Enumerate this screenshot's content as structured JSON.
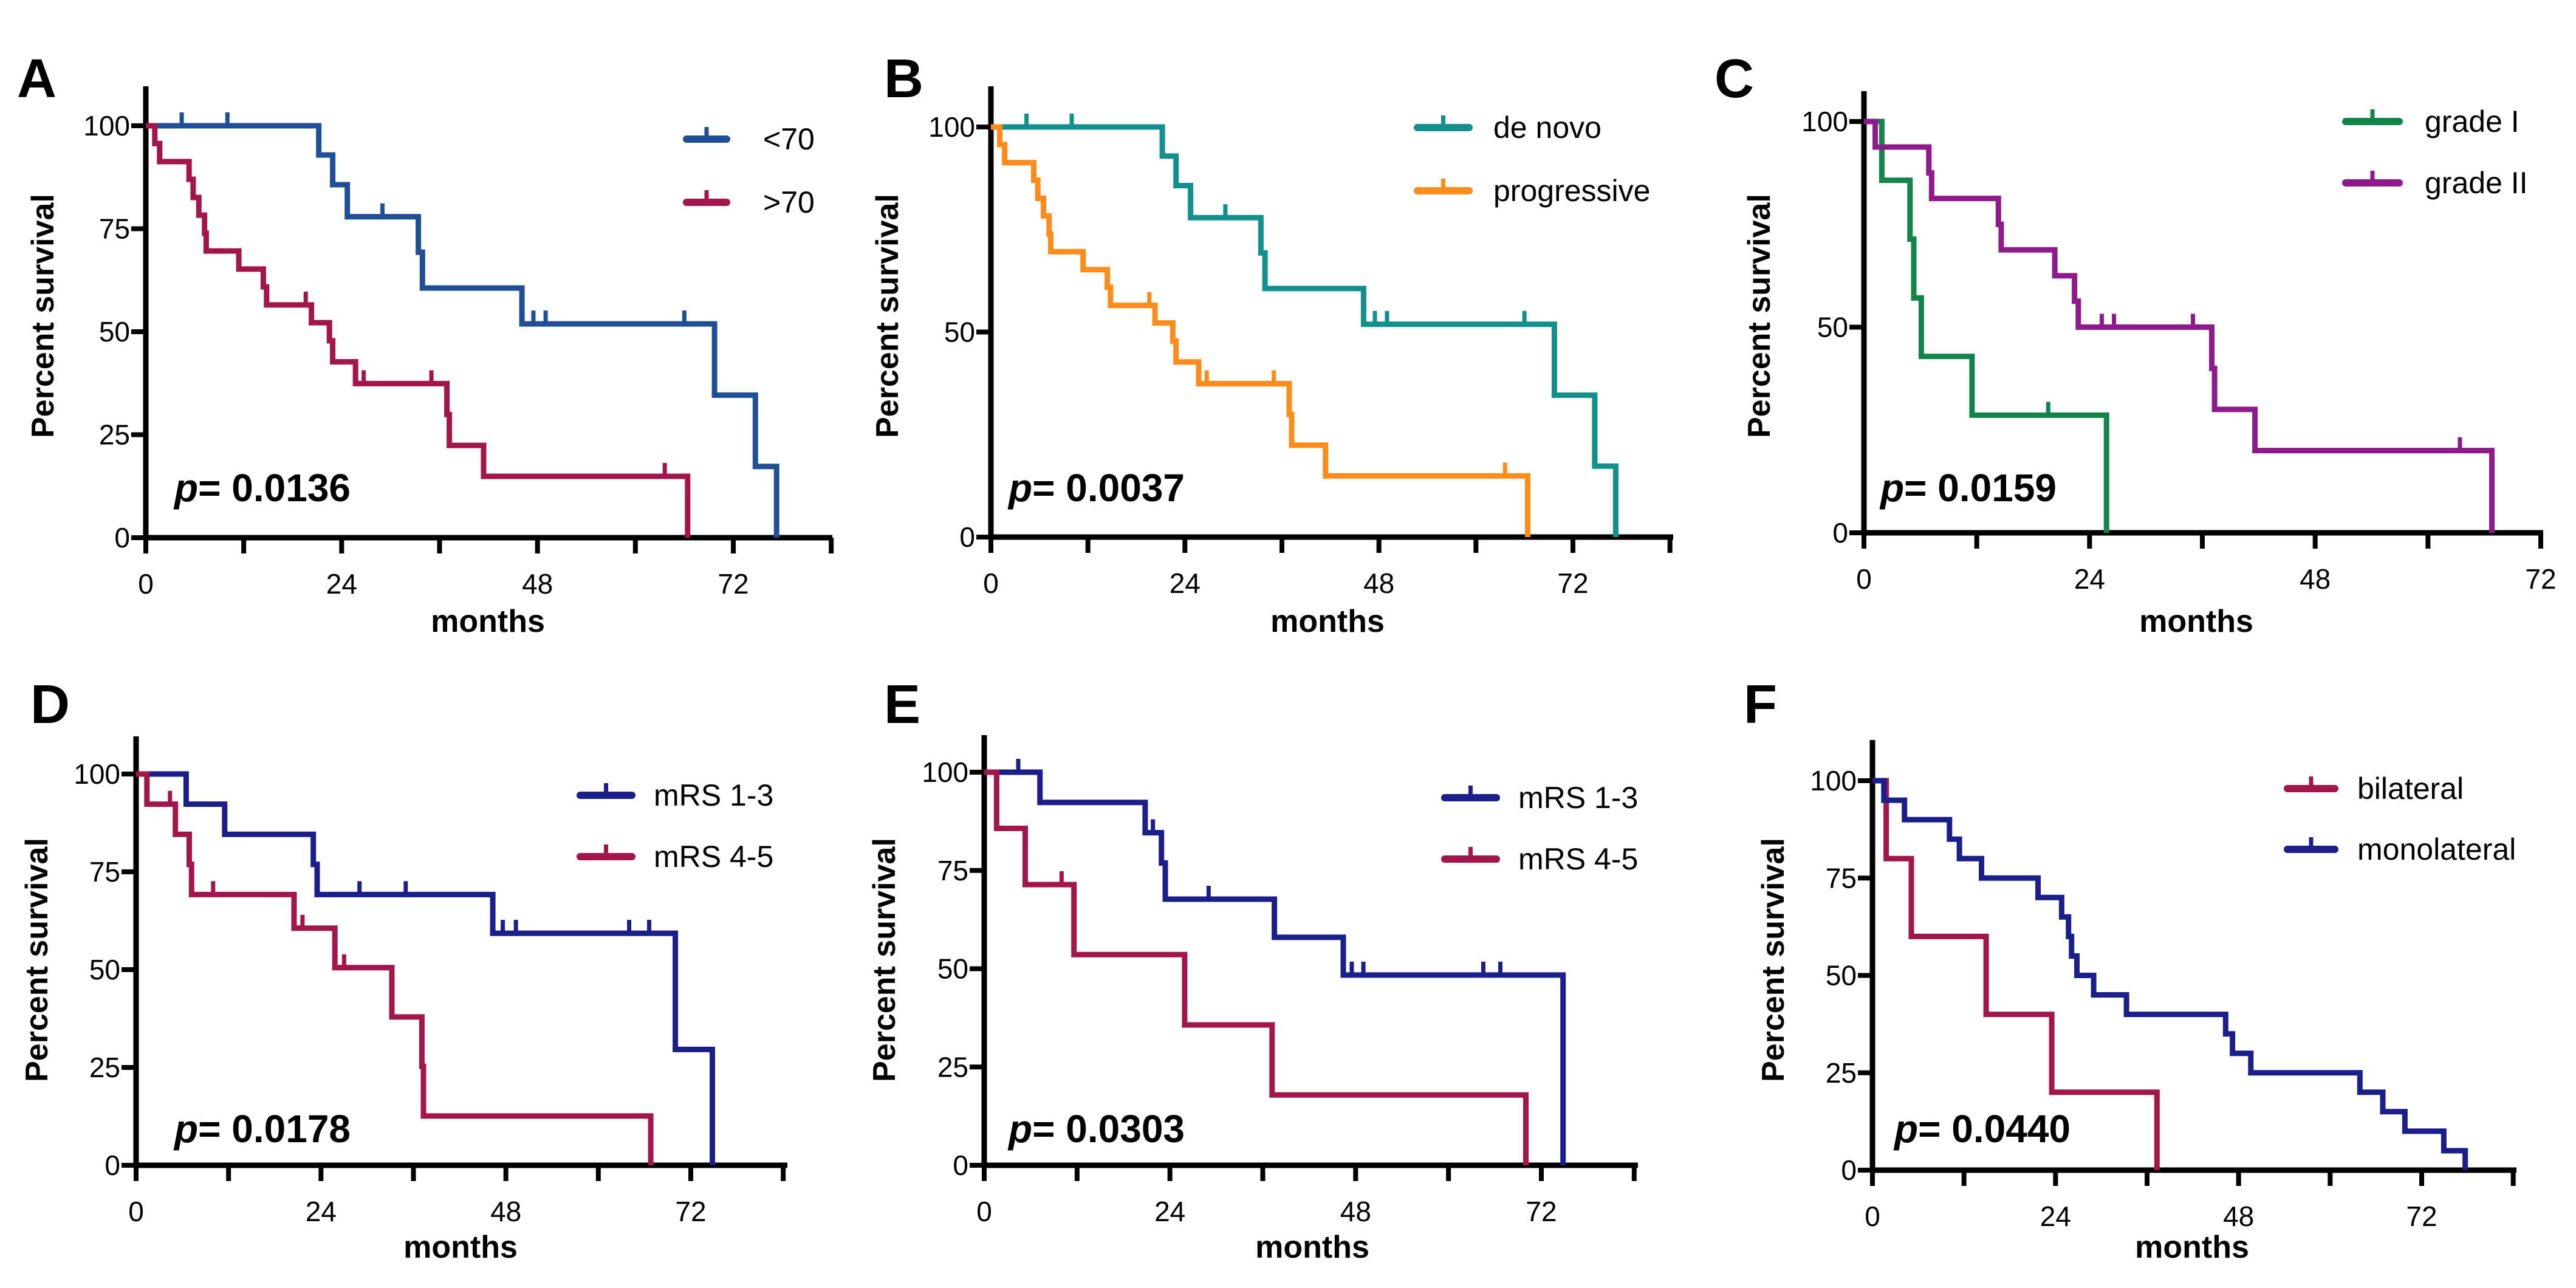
{
  "colors": {
    "axis": "#000000"
  },
  "chart_data": [
    {
      "panel": "A",
      "type": "line",
      "subtype": "kaplan-meier",
      "xlabel": "months",
      "ylabel": "Percent survival",
      "xlim": [
        0,
        84
      ],
      "ylim": [
        0,
        100
      ],
      "x_minor_step": 12,
      "x_ticks": [
        "0",
        "24",
        "48",
        "72"
      ],
      "x_tick_values": [
        0,
        24,
        48,
        72
      ],
      "y_ticks": [
        "0",
        "25",
        "50",
        "75",
        "100"
      ],
      "y_tick_values": [
        0,
        25,
        50,
        75,
        100
      ],
      "p_prefix": "p",
      "p_text": "= 0.0136",
      "legend_position": "top-right",
      "series": [
        {
          "name": "<70",
          "color": "#1f4f96",
          "steps": [
            [
              0,
              100
            ],
            [
              21.2,
              92.9
            ],
            [
              22.9,
              85.7
            ],
            [
              24.7,
              77.9
            ],
            [
              33.4,
              69.3
            ],
            [
              33.9,
              60.6
            ],
            [
              46.1,
              51.9
            ],
            [
              69.7,
              34.6
            ],
            [
              74.7,
              17.3
            ],
            [
              77.3,
              0
            ]
          ],
          "censored": [
            4.4,
            10,
            29,
            47.5,
            49,
            66
          ]
        },
        {
          "name": ">70",
          "color": "#a3164b",
          "steps": [
            [
              0,
              100
            ],
            [
              1.1,
              95.7
            ],
            [
              1.7,
              91.3
            ],
            [
              5.3,
              87
            ],
            [
              5.8,
              82.6
            ],
            [
              6.5,
              78.3
            ],
            [
              7.2,
              73.9
            ],
            [
              7.4,
              69.6
            ],
            [
              11.4,
              65.2
            ],
            [
              14.4,
              60.9
            ],
            [
              14.8,
              56.5
            ],
            [
              20.3,
              52.2
            ],
            [
              22.5,
              47.8
            ],
            [
              22.9,
              42.7
            ],
            [
              25.7,
              37.4
            ],
            [
              36.9,
              29.9
            ],
            [
              37.2,
              22.4
            ],
            [
              41.4,
              14.9
            ],
            [
              66.4,
              0
            ]
          ],
          "censored": [
            19.6,
            26.7,
            35,
            63.6
          ]
        }
      ]
    },
    {
      "panel": "B",
      "type": "line",
      "subtype": "kaplan-meier",
      "xlabel": "months",
      "ylabel": "Percent survival",
      "xlim": [
        0,
        84
      ],
      "ylim": [
        0,
        100
      ],
      "x_minor_step": 12,
      "x_ticks": [
        "0",
        "24",
        "48",
        "72"
      ],
      "x_tick_values": [
        0,
        24,
        48,
        72
      ],
      "y_ticks": [
        "0",
        "50",
        "100"
      ],
      "y_tick_values": [
        0,
        50,
        100
      ],
      "p_prefix": "p",
      "p_text": "= 0.0037",
      "legend_position": "top-right",
      "series": [
        {
          "name": "de novo",
          "color": "#12908e",
          "steps": [
            [
              0,
              100
            ],
            [
              21.2,
              92.9
            ],
            [
              22.9,
              85.7
            ],
            [
              24.7,
              77.9
            ],
            [
              33.4,
              69.3
            ],
            [
              33.9,
              60.6
            ],
            [
              46.1,
              51.9
            ],
            [
              69.7,
              34.6
            ],
            [
              74.7,
              17.3
            ],
            [
              77.3,
              0
            ]
          ],
          "censored": [
            4.4,
            10,
            29,
            47.5,
            49,
            66
          ]
        },
        {
          "name": "progressive",
          "color": "#ff8c1a",
          "steps": [
            [
              0,
              100
            ],
            [
              1.1,
              95.7
            ],
            [
              1.7,
              91.3
            ],
            [
              5.3,
              87
            ],
            [
              5.8,
              82.6
            ],
            [
              6.5,
              78.3
            ],
            [
              7.2,
              73.9
            ],
            [
              7.4,
              69.6
            ],
            [
              11.4,
              65.2
            ],
            [
              14.4,
              60.9
            ],
            [
              14.8,
              56.5
            ],
            [
              20.3,
              52.2
            ],
            [
              22.5,
              47.8
            ],
            [
              22.9,
              42.7
            ],
            [
              25.7,
              37.4
            ],
            [
              36.9,
              29.9
            ],
            [
              37.2,
              22.4
            ],
            [
              41.4,
              14.9
            ],
            [
              66.4,
              0
            ]
          ],
          "censored": [
            19.6,
            26.7,
            35,
            63.6
          ]
        }
      ]
    },
    {
      "panel": "C",
      "type": "line",
      "subtype": "kaplan-meier",
      "xlabel": "months",
      "ylabel": "Percent survival",
      "xlim": [
        0,
        72
      ],
      "ylim": [
        0,
        100
      ],
      "x_minor_step": 12,
      "x_ticks": [
        "0",
        "24",
        "48",
        "72"
      ],
      "x_tick_values": [
        0,
        24,
        48,
        72
      ],
      "y_ticks": [
        "0",
        "50",
        "100"
      ],
      "y_tick_values": [
        0,
        50,
        100
      ],
      "p_prefix": "p",
      "p_text": "= 0.0159",
      "legend_position": "top-right",
      "series": [
        {
          "name": "grade I",
          "color": "#13854a",
          "steps": [
            [
              0,
              100
            ],
            [
              1.9,
              85.7
            ],
            [
              4.9,
              71.4
            ],
            [
              5.3,
              57.1
            ],
            [
              6.1,
              42.9
            ],
            [
              11.5,
              28.6
            ],
            [
              25.8,
              0
            ]
          ],
          "censored": [
            19.6
          ]
        },
        {
          "name": "grade II",
          "color": "#8e1a8c",
          "steps": [
            [
              0,
              100
            ],
            [
              1.2,
              93.8
            ],
            [
              6.9,
              87.5
            ],
            [
              7.2,
              81.3
            ],
            [
              14.3,
              75
            ],
            [
              14.6,
              68.8
            ],
            [
              20.3,
              62.5
            ],
            [
              22.4,
              56.3
            ],
            [
              22.8,
              50
            ],
            [
              37,
              40
            ],
            [
              37.3,
              30
            ],
            [
              41.6,
              20
            ],
            [
              66.8,
              0
            ]
          ],
          "censored": [
            25.3,
            26.6,
            35,
            63.4
          ]
        }
      ]
    },
    {
      "panel": "D",
      "type": "line",
      "subtype": "kaplan-meier",
      "xlabel": "months",
      "ylabel": "Percent survival",
      "xlim": [
        0,
        84
      ],
      "ylim": [
        0,
        100
      ],
      "x_minor_step": 12,
      "x_ticks": [
        "0",
        "24",
        "48",
        "72"
      ],
      "x_tick_values": [
        0,
        24,
        48,
        72
      ],
      "y_ticks": [
        "0",
        "25",
        "50",
        "75",
        "100"
      ],
      "y_tick_values": [
        0,
        25,
        50,
        75,
        100
      ],
      "p_prefix": "p",
      "p_text": "= 0.0178",
      "legend_position": "top-right",
      "series": [
        {
          "name": "mRS 1-3",
          "color": "#1a1f8c",
          "steps": [
            [
              0,
              100
            ],
            [
              6.5,
              92.3
            ],
            [
              11.5,
              84.6
            ],
            [
              23,
              76.9
            ],
            [
              23.5,
              69.2
            ],
            [
              46.3,
              59.3
            ],
            [
              70,
              29.6
            ],
            [
              74.8,
              0
            ]
          ],
          "censored": [
            29,
            35,
            47.6,
            49.3,
            64,
            66.6
          ]
        },
        {
          "name": "mRS 4-5",
          "color": "#a3164b",
          "steps": [
            [
              0,
              100
            ],
            [
              1.4,
              92.3
            ],
            [
              5.1,
              84.6
            ],
            [
              6.9,
              76.9
            ],
            [
              7.2,
              69.2
            ],
            [
              20.5,
              60.6
            ],
            [
              25.8,
              50.5
            ],
            [
              33.2,
              37.9
            ],
            [
              37.1,
              25.3
            ],
            [
              37.3,
              12.6
            ],
            [
              66.8,
              0
            ]
          ],
          "censored": [
            4.4,
            10,
            21.6,
            27
          ]
        }
      ]
    },
    {
      "panel": "E",
      "type": "line",
      "subtype": "kaplan-meier",
      "xlabel": "months",
      "ylabel": "Percent survival",
      "xlim": [
        0,
        84
      ],
      "ylim": [
        0,
        100
      ],
      "x_minor_step": 12,
      "x_ticks": [
        "0",
        "24",
        "48",
        "72"
      ],
      "x_tick_values": [
        0,
        24,
        48,
        72
      ],
      "y_ticks": [
        "0",
        "25",
        "50",
        "75",
        "100"
      ],
      "y_tick_values": [
        0,
        25,
        50,
        75,
        100
      ],
      "p_prefix": "p",
      "p_text": "= 0.0303",
      "legend_position": "top-right",
      "series": [
        {
          "name": "mRS 1-3",
          "color": "#1a1f8c",
          "steps": [
            [
              0,
              100
            ],
            [
              7.2,
              92.3
            ],
            [
              20.8,
              84.6
            ],
            [
              22.9,
              76.9
            ],
            [
              23.4,
              67.7
            ],
            [
              37.5,
              58
            ],
            [
              46.4,
              48.4
            ],
            [
              74.8,
              0
            ]
          ],
          "censored": [
            4.4,
            21.8,
            29,
            47.5,
            49,
            64.5,
            66.7
          ]
        },
        {
          "name": "mRS 4-5",
          "color": "#a3164b",
          "steps": [
            [
              0,
              100
            ],
            [
              1.6,
              85.7
            ],
            [
              5.3,
              71.4
            ],
            [
              11.6,
              53.6
            ],
            [
              25.9,
              35.7
            ],
            [
              37.2,
              17.9
            ],
            [
              70,
              0
            ]
          ],
          "censored": [
            10
          ]
        }
      ]
    },
    {
      "panel": "F",
      "type": "line",
      "subtype": "kaplan-meier",
      "xlabel": "months",
      "ylabel": "Percent survival",
      "xlim": [
        0,
        84
      ],
      "ylim": [
        0,
        100
      ],
      "x_minor_step": 12,
      "x_ticks": [
        "0",
        "24",
        "48",
        "72"
      ],
      "x_tick_values": [
        0,
        24,
        48,
        72
      ],
      "y_ticks": [
        "0",
        "25",
        "50",
        "75",
        "100"
      ],
      "y_tick_values": [
        0,
        25,
        50,
        75,
        100
      ],
      "p_prefix": "p",
      "p_text": "= 0.0440",
      "legend_position": "top-right",
      "series": [
        {
          "name": "bilateral",
          "color": "#a3164b",
          "steps": [
            [
              0,
              100
            ],
            [
              1.8,
              80
            ],
            [
              5.1,
              60
            ],
            [
              14.9,
              40
            ],
            [
              23.5,
              20
            ],
            [
              37.3,
              0
            ]
          ],
          "censored": []
        },
        {
          "name": "monolateral",
          "color": "#1a1f8c",
          "steps": [
            [
              0,
              100
            ],
            [
              1.5,
              95
            ],
            [
              4.2,
              90
            ],
            [
              10.1,
              85
            ],
            [
              11.4,
              80
            ],
            [
              14.3,
              75
            ],
            [
              21.7,
              70
            ],
            [
              24.8,
              65
            ],
            [
              25.7,
              60
            ],
            [
              26.1,
              55
            ],
            [
              26.8,
              50
            ],
            [
              29,
              45
            ],
            [
              33.3,
              40
            ],
            [
              46.3,
              35
            ],
            [
              47.2,
              30
            ],
            [
              49.6,
              25
            ],
            [
              63.9,
              20
            ],
            [
              66.9,
              15
            ],
            [
              69.8,
              10
            ],
            [
              74.9,
              5
            ],
            [
              77.7,
              0
            ]
          ],
          "censored": []
        }
      ]
    }
  ]
}
